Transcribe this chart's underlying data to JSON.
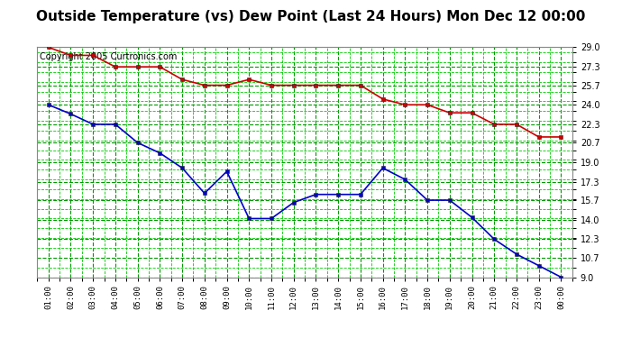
{
  "title": "Outside Temperature (vs) Dew Point (Last 24 Hours) Mon Dec 12 00:00",
  "copyright": "Copyright 2005 Curtronics.com",
  "x_labels": [
    "01:00",
    "02:00",
    "03:00",
    "04:00",
    "05:00",
    "06:00",
    "07:00",
    "08:00",
    "09:00",
    "10:00",
    "11:00",
    "12:00",
    "13:00",
    "14:00",
    "15:00",
    "16:00",
    "17:00",
    "18:00",
    "19:00",
    "20:00",
    "21:00",
    "22:00",
    "23:00",
    "00:00"
  ],
  "red_data": [
    29.0,
    28.3,
    28.3,
    27.3,
    27.3,
    27.3,
    26.2,
    25.7,
    25.7,
    26.2,
    25.7,
    25.7,
    25.7,
    25.7,
    25.7,
    24.5,
    24.0,
    24.0,
    23.3,
    23.3,
    22.3,
    22.3,
    21.2,
    21.2
  ],
  "blue_data": [
    24.0,
    23.2,
    22.3,
    22.3,
    20.7,
    19.8,
    18.5,
    16.3,
    18.2,
    14.1,
    14.1,
    15.5,
    16.2,
    16.2,
    16.2,
    18.5,
    17.5,
    15.7,
    15.7,
    14.2,
    12.3,
    11.0,
    10.0,
    9.0
  ],
  "red_color": "#cc0000",
  "blue_color": "#0000cc",
  "bg_color": "#ffffff",
  "plot_bg_color": "#ffffff",
  "grid_major_color": "#009900",
  "grid_minor_color": "#00cc00",
  "title_fontsize": 11,
  "copyright_fontsize": 7,
  "ylim_min": 9.0,
  "ylim_max": 29.0,
  "yticks": [
    9.0,
    10.7,
    12.3,
    14.0,
    15.7,
    17.3,
    19.0,
    20.7,
    22.3,
    24.0,
    25.7,
    27.3,
    29.0
  ],
  "fig_width": 6.9,
  "fig_height": 3.75,
  "dpi": 100
}
